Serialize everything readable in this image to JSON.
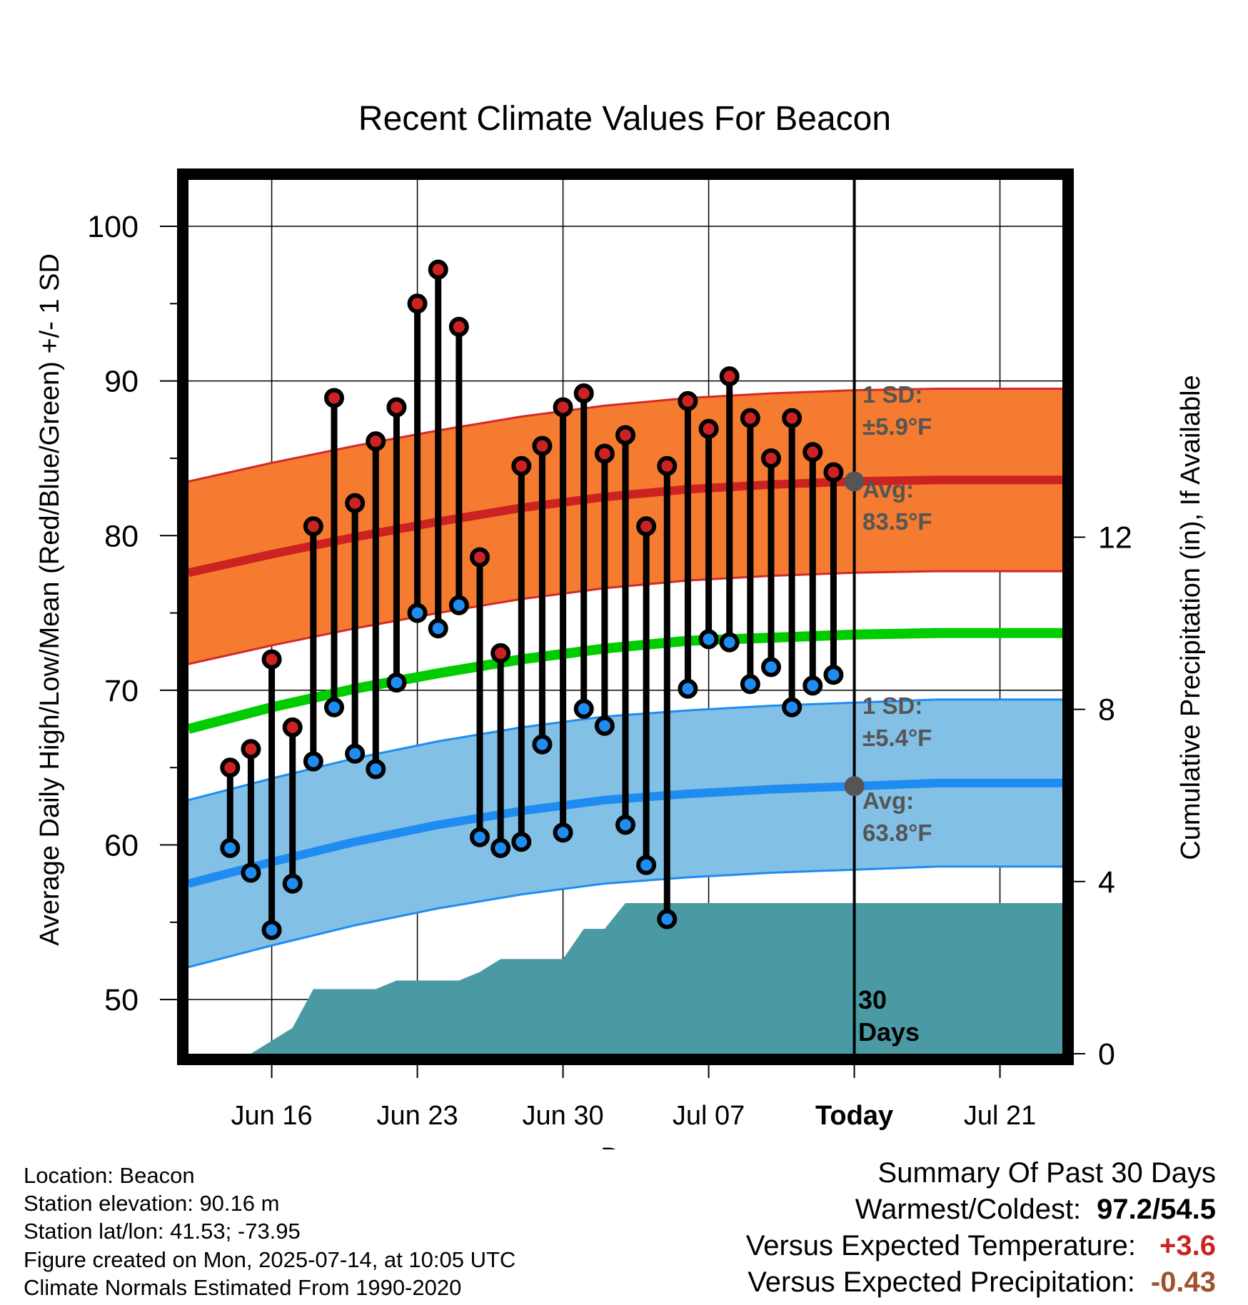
{
  "chart_data": {
    "type": "line",
    "title": "Recent Climate Values For Beacon",
    "xlabel": "Day",
    "ylabel": "Average Daily High/Low/Mean (Red/Blue/Green) +/- 1 SD",
    "y2label": "Cumulative Precipitation (in), If Available",
    "ylim": [
      46.5,
      103
    ],
    "y2lim": [
      0,
      20.3
    ],
    "yticks": [
      "50",
      "60",
      "70",
      "80",
      "90",
      "100"
    ],
    "y2ticks": [
      "0",
      "4",
      "8",
      "12"
    ],
    "xlim": [
      "2025-06-12",
      "2025-07-24"
    ],
    "xticks": [
      {
        "date": "2025-06-16",
        "label": "Jun 16"
      },
      {
        "date": "2025-06-23",
        "label": "Jun 23"
      },
      {
        "date": "2025-06-30",
        "label": "Jun 30"
      },
      {
        "date": "2025-07-07",
        "label": "Jul 07"
      },
      {
        "date": "2025-07-14",
        "label": "Today"
      },
      {
        "date": "2025-07-21",
        "label": "Jul 21"
      }
    ],
    "today": "2025-07-14",
    "window_label": "30 Days",
    "colors": {
      "high": "#cc2222",
      "high_band": "#f47b2f",
      "high_band_edge": "#d42a2a",
      "low": "#1e8cf0",
      "low_band": "#82c0e6",
      "low_band_edge": "#1e8cf0",
      "mean": "#00cc00",
      "precip": "#4a9aa4",
      "annotation": "#555555",
      "warm_value": "#cc2222",
      "precip_value": "#a0522d"
    },
    "observed": {
      "dates": [
        "2025-06-14",
        "2025-06-15",
        "2025-06-16",
        "2025-06-17",
        "2025-06-18",
        "2025-06-19",
        "2025-06-20",
        "2025-06-21",
        "2025-06-22",
        "2025-06-23",
        "2025-06-24",
        "2025-06-25",
        "2025-06-26",
        "2025-06-27",
        "2025-06-28",
        "2025-06-29",
        "2025-06-30",
        "2025-07-01",
        "2025-07-02",
        "2025-07-03",
        "2025-07-04",
        "2025-07-05",
        "2025-07-06",
        "2025-07-07",
        "2025-07-08",
        "2025-07-09",
        "2025-07-10",
        "2025-07-11",
        "2025-07-12",
        "2025-07-13"
      ],
      "high": [
        65.0,
        66.2,
        72.0,
        67.6,
        80.6,
        88.9,
        82.1,
        86.1,
        88.3,
        95.0,
        97.2,
        93.5,
        78.6,
        72.4,
        84.5,
        85.8,
        88.3,
        89.2,
        85.3,
        86.5,
        80.6,
        84.5,
        88.7,
        86.9,
        90.3,
        87.6,
        85.0,
        87.6,
        85.4,
        84.1
      ],
      "low": [
        59.8,
        58.2,
        54.5,
        57.5,
        65.4,
        68.9,
        65.9,
        64.9,
        70.5,
        75.0,
        74.0,
        75.5,
        60.5,
        59.8,
        60.2,
        66.5,
        60.8,
        68.8,
        67.7,
        61.3,
        58.7,
        55.2,
        70.1,
        73.3,
        73.1,
        70.4,
        71.5,
        68.9,
        70.3,
        71.0
      ]
    },
    "normals": {
      "dates": [
        "2025-06-12",
        "2025-06-16",
        "2025-06-20",
        "2025-06-24",
        "2025-06-28",
        "2025-07-02",
        "2025-07-06",
        "2025-07-10",
        "2025-07-14",
        "2025-07-18",
        "2025-07-24"
      ],
      "high_avg": [
        77.6,
        78.8,
        79.9,
        80.9,
        81.8,
        82.5,
        83.0,
        83.3,
        83.5,
        83.6,
        83.6
      ],
      "high_sd": 5.9,
      "low_avg": [
        57.5,
        58.9,
        60.2,
        61.3,
        62.2,
        62.9,
        63.3,
        63.6,
        63.8,
        64.0,
        64.0
      ],
      "low_sd": 5.4,
      "mean_avg": [
        67.5,
        68.9,
        70.1,
        71.1,
        72.0,
        72.7,
        73.2,
        73.4,
        73.6,
        73.7,
        73.7
      ]
    },
    "precip_cumulative": {
      "dates": [
        "2025-06-14",
        "2025-06-15",
        "2025-06-16",
        "2025-06-17",
        "2025-06-18",
        "2025-06-19",
        "2025-06-20",
        "2025-06-21",
        "2025-06-22",
        "2025-06-23",
        "2025-06-24",
        "2025-06-25",
        "2025-06-26",
        "2025-06-27",
        "2025-06-28",
        "2025-06-29",
        "2025-06-30",
        "2025-07-01",
        "2025-07-02",
        "2025-07-03",
        "2025-07-04",
        "2025-07-05",
        "2025-07-06",
        "2025-07-07",
        "2025-07-08",
        "2025-07-09",
        "2025-07-10",
        "2025-07-11",
        "2025-07-12",
        "2025-07-13",
        "2025-07-14",
        "2025-07-24"
      ],
      "values": [
        0.0,
        0.0,
        0.3,
        0.6,
        1.5,
        1.5,
        1.5,
        1.5,
        1.7,
        1.7,
        1.7,
        1.7,
        1.9,
        2.2,
        2.2,
        2.2,
        2.2,
        2.9,
        2.9,
        3.5,
        3.5,
        3.5,
        3.5,
        3.5,
        3.5,
        3.5,
        3.5,
        3.5,
        3.5,
        3.5,
        3.5,
        3.5
      ]
    },
    "annotations": {
      "high_sd_title": "1 SD:",
      "high_sd_value": "±5.9°F",
      "high_avg_title": "Avg:",
      "high_avg_value": "83.5°F",
      "low_sd_title": "1 SD:",
      "low_sd_value": "±5.4°F",
      "low_avg_title": "Avg:",
      "low_avg_value": "63.8°F"
    }
  },
  "footer_left": [
    "Location: Beacon",
    "Station elevation: 90.16 m",
    "Station lat/lon: 41.53; -73.95",
    "Figure created on Mon, 2025-07-14, at 10:05 UTC",
    "Climate Normals Estimated From 1990-2020"
  ],
  "summary": {
    "title": "Summary Of Past 30 Days",
    "warm_cold_label": "Warmest/Coldest:",
    "warm_cold_value": "97.2/54.5",
    "temp_label": "Versus Expected Temperature:",
    "temp_value": "+3.6",
    "precip_label": "Versus Expected Precipitation:",
    "precip_value": "-0.43"
  }
}
